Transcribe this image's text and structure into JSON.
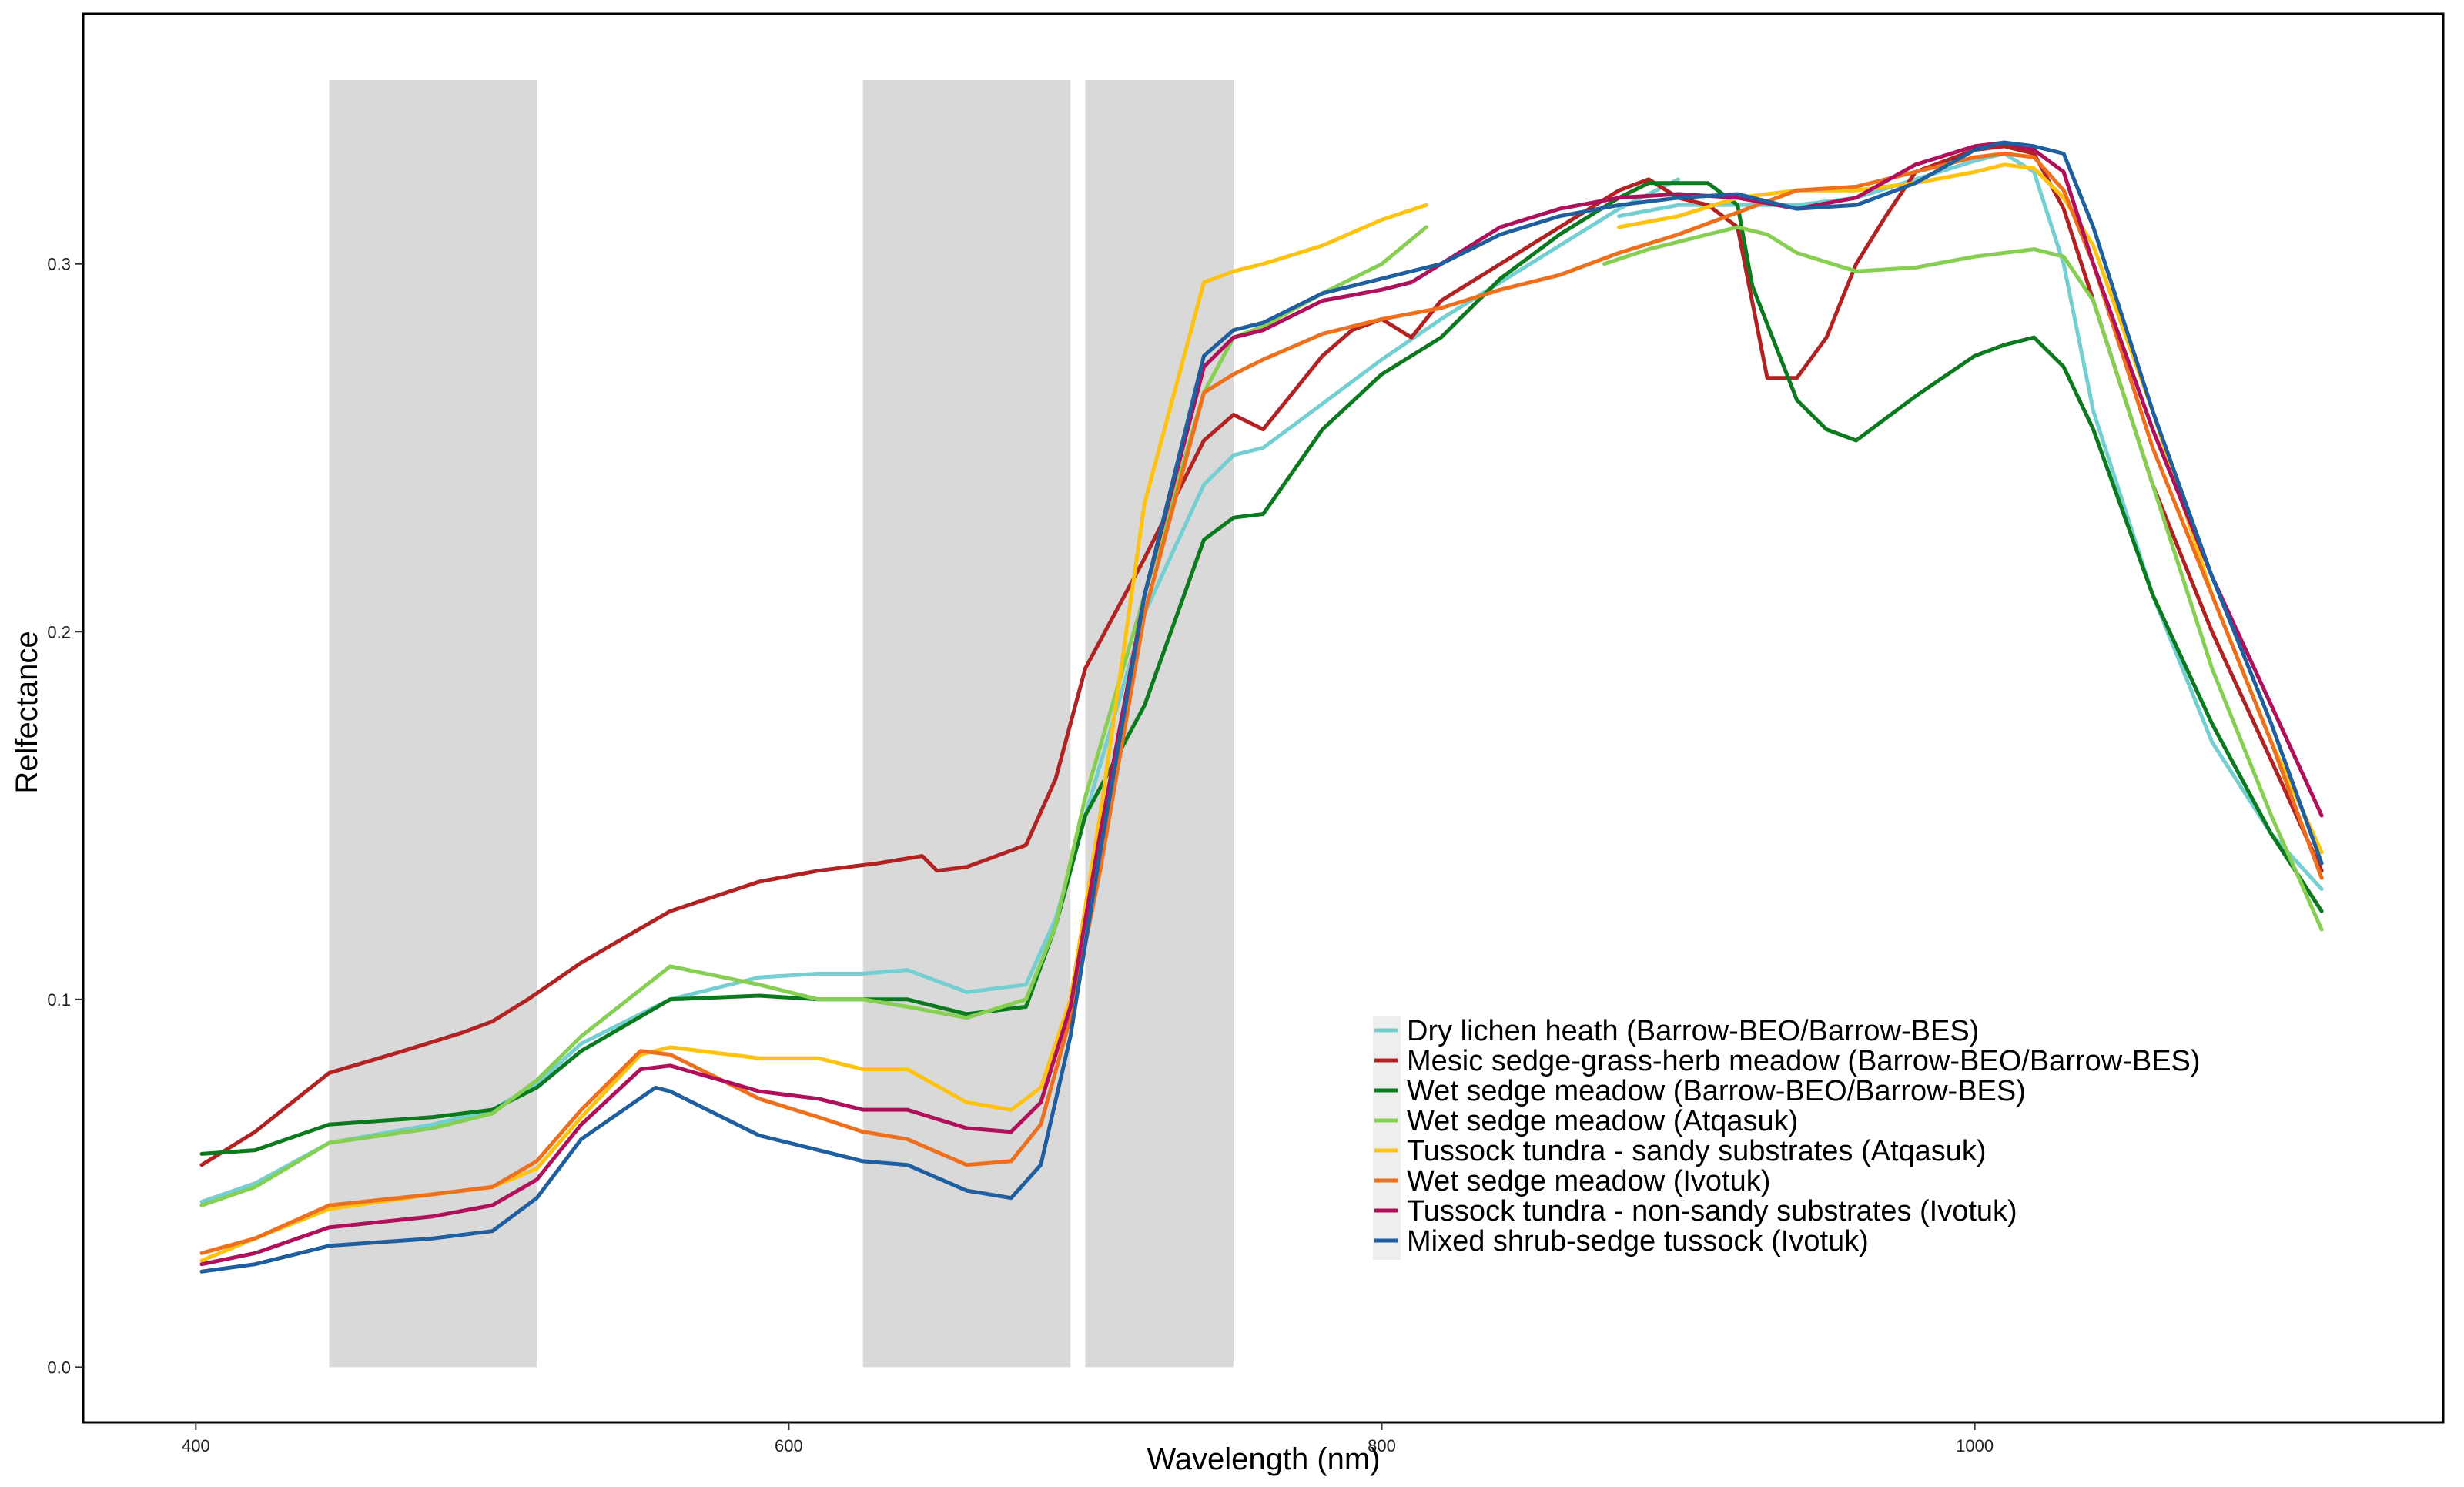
{
  "chart_data": {
    "type": "line",
    "title": "",
    "xlabel": "Wavelength (nm)",
    "ylabel": "Relfectance",
    "xlim": [
      362,
      1158
    ],
    "ylim": [
      -0.015,
      0.368
    ],
    "x_ticks": [
      400,
      600,
      800,
      1000
    ],
    "y_ticks": [
      0.0,
      0.1,
      0.2,
      0.3
    ],
    "x_tick_labels": [
      "400",
      "600",
      "800",
      "1000"
    ],
    "y_tick_labels": [
      "0.0",
      "0.1",
      "0.2",
      "0.3"
    ],
    "grid": false,
    "legend_position": "bottom-right",
    "shaded_bands": [
      {
        "x": [
          445,
          515
        ],
        "y": [
          0,
          0.35
        ],
        "color": "#d9d9d9"
      },
      {
        "x": [
          625,
          695
        ],
        "y": [
          0,
          0.35
        ],
        "color": "#d9d9d9"
      },
      {
        "x": [
          700,
          750
        ],
        "y": [
          0,
          0.35
        ],
        "color": "#d9d9d9"
      }
    ],
    "series": [
      {
        "name": "Dry lichen heath (Barrow-BEO/Barrow-BES)",
        "color": "#74cfd2",
        "segments": [
          {
            "x": [
              402,
              420,
              445,
              480,
              500,
              515,
              530,
              560,
              590,
              610,
              625,
              640,
              660,
              680,
              690,
              700,
              720,
              740,
              750,
              760,
              780,
              800,
              820,
              840,
              860,
              880,
              900
            ],
            "y": [
              0.045,
              0.05,
              0.061,
              0.066,
              0.07,
              0.077,
              0.088,
              0.1,
              0.106,
              0.107,
              0.107,
              0.108,
              0.102,
              0.104,
              0.122,
              0.15,
              0.205,
              0.24,
              0.248,
              0.25,
              0.262,
              0.274,
              0.285,
              0.295,
              0.305,
              0.315,
              0.323
            ]
          },
          {
            "x": [
              880,
              900,
              920,
              940,
              960,
              980,
              1000,
              1010,
              1020,
              1030,
              1040,
              1060,
              1080,
              1100,
              1117
            ],
            "y": [
              0.313,
              0.316,
              0.316,
              0.316,
              0.318,
              0.323,
              0.328,
              0.33,
              0.325,
              0.3,
              0.26,
              0.21,
              0.17,
              0.145,
              0.13
            ]
          }
        ]
      },
      {
        "name": "Mesic sedge-grass-herb meadow (Barrow-BEO/Barrow-BES)",
        "color": "#b22222",
        "segments": [
          {
            "x": [
              402,
              420,
              445,
              470,
              490,
              500,
              512,
              530,
              560,
              590,
              610,
              630,
              645,
              650,
              660,
              680,
              690,
              700,
              720,
              740,
              750,
              760,
              770,
              780,
              790,
              800,
              810,
              820,
              840,
              860,
              880,
              890,
              900,
              910,
              920,
              930,
              940,
              950,
              960,
              970,
              980,
              1000,
              1010,
              1020,
              1030,
              1040,
              1060,
              1080,
              1100,
              1117
            ],
            "y": [
              0.055,
              0.064,
              0.08,
              0.086,
              0.091,
              0.094,
              0.1,
              0.11,
              0.124,
              0.132,
              0.135,
              0.137,
              0.139,
              0.135,
              0.136,
              0.142,
              0.16,
              0.19,
              0.22,
              0.252,
              0.259,
              0.255,
              0.265,
              0.275,
              0.282,
              0.285,
              0.28,
              0.29,
              0.3,
              0.31,
              0.32,
              0.323,
              0.318,
              0.316,
              0.31,
              0.269,
              0.269,
              0.28,
              0.3,
              0.313,
              0.325,
              0.331,
              0.332,
              0.33,
              0.315,
              0.29,
              0.24,
              0.2,
              0.165,
              0.135
            ]
          }
        ]
      },
      {
        "name": "Wet sedge meadow (Barrow-BEO/Barrow-BES)",
        "color": "#0b7a1f",
        "segments": [
          {
            "x": [
              402,
              420,
              445,
              480,
              500,
              515,
              530,
              560,
              590,
              610,
              625,
              640,
              660,
              680,
              690,
              700,
              720,
              740,
              750,
              760,
              780,
              800,
              820,
              840,
              860,
              880,
              890,
              900,
              910,
              920,
              925,
              940,
              950,
              960,
              970,
              980,
              1000,
              1010,
              1020,
              1030,
              1040,
              1060,
              1080,
              1100,
              1117
            ],
            "y": [
              0.058,
              0.059,
              0.066,
              0.068,
              0.07,
              0.076,
              0.086,
              0.1,
              0.101,
              0.1,
              0.1,
              0.1,
              0.096,
              0.098,
              0.12,
              0.15,
              0.18,
              0.225,
              0.231,
              0.232,
              0.255,
              0.27,
              0.28,
              0.296,
              0.308,
              0.318,
              0.322,
              0.322,
              0.322,
              0.316,
              0.294,
              0.263,
              0.255,
              0.252,
              0.258,
              0.264,
              0.275,
              0.278,
              0.28,
              0.272,
              0.255,
              0.21,
              0.175,
              0.145,
              0.124
            ]
          }
        ]
      },
      {
        "name": "Wet sedge meadow (Atqasuk)",
        "color": "#86cf52",
        "segments": [
          {
            "x": [
              402,
              420,
              445,
              480,
              500,
              515,
              530,
              560,
              590,
              610,
              625,
              640,
              660,
              680,
              690,
              700,
              720,
              740,
              750,
              760,
              780,
              800,
              815
            ],
            "y": [
              0.044,
              0.049,
              0.061,
              0.065,
              0.069,
              0.078,
              0.09,
              0.109,
              0.104,
              0.1,
              0.1,
              0.098,
              0.095,
              0.1,
              0.12,
              0.155,
              0.21,
              0.265,
              0.28,
              0.283,
              0.292,
              0.3,
              0.31
            ]
          },
          {
            "x": [
              875,
              890,
              900,
              910,
              920,
              930,
              940,
              960,
              980,
              1000,
              1020,
              1030,
              1040,
              1060,
              1080,
              1100,
              1117
            ],
            "y": [
              0.3,
              0.304,
              0.306,
              0.308,
              0.31,
              0.308,
              0.303,
              0.298,
              0.299,
              0.302,
              0.304,
              0.302,
              0.29,
              0.24,
              0.19,
              0.15,
              0.119
            ]
          }
        ]
      },
      {
        "name": "Tussock tundra - sandy substrates (Atqasuk)",
        "color": "#ffc20e",
        "segments": [
          {
            "x": [
              402,
              420,
              445,
              480,
              500,
              515,
              530,
              550,
              560,
              590,
              610,
              625,
              640,
              660,
              675,
              685,
              695,
              705,
              720,
              740,
              750,
              760,
              780,
              800,
              815
            ],
            "y": [
              0.029,
              0.035,
              0.043,
              0.047,
              0.049,
              0.054,
              0.068,
              0.085,
              0.087,
              0.084,
              0.084,
              0.081,
              0.081,
              0.072,
              0.07,
              0.076,
              0.1,
              0.15,
              0.235,
              0.295,
              0.298,
              0.3,
              0.305,
              0.312,
              0.316
            ]
          },
          {
            "x": [
              880,
              900,
              920,
              940,
              960,
              980,
              1000,
              1010,
              1020,
              1030,
              1040,
              1060,
              1080,
              1100,
              1117
            ],
            "y": [
              0.31,
              0.313,
              0.318,
              0.32,
              0.32,
              0.322,
              0.325,
              0.327,
              0.326,
              0.318,
              0.305,
              0.26,
              0.21,
              0.17,
              0.14
            ]
          }
        ]
      },
      {
        "name": "Wet sedge meadow (Ivotuk)",
        "color": "#ee6f1c",
        "segments": [
          {
            "x": [
              402,
              420,
              445,
              480,
              500,
              515,
              530,
              550,
              560,
              590,
              610,
              625,
              640,
              660,
              675,
              685,
              695,
              705,
              720,
              740,
              750,
              760,
              780,
              800,
              820,
              840,
              860,
              880,
              900,
              920,
              940,
              960,
              980,
              1000,
              1010,
              1020,
              1030,
              1040,
              1060,
              1080,
              1100,
              1117
            ],
            "y": [
              0.031,
              0.035,
              0.044,
              0.047,
              0.049,
              0.056,
              0.07,
              0.086,
              0.085,
              0.073,
              0.068,
              0.064,
              0.062,
              0.055,
              0.056,
              0.066,
              0.095,
              0.135,
              0.205,
              0.265,
              0.27,
              0.274,
              0.281,
              0.285,
              0.288,
              0.293,
              0.297,
              0.303,
              0.308,
              0.314,
              0.32,
              0.321,
              0.325,
              0.329,
              0.33,
              0.329,
              0.32,
              0.3,
              0.25,
              0.21,
              0.17,
              0.133
            ]
          }
        ]
      },
      {
        "name": "Tussock tundra - non-sandy substrates (Ivotuk)",
        "color": "#b0105a",
        "segments": [
          {
            "x": [
              402,
              420,
              445,
              480,
              500,
              515,
              530,
              550,
              560,
              590,
              610,
              625,
              640,
              660,
              675,
              685,
              695,
              705,
              720,
              740,
              750,
              760,
              780,
              800,
              810,
              820,
              840,
              860,
              880,
              900,
              920,
              940,
              960,
              980,
              1000,
              1010,
              1020,
              1030,
              1040,
              1060,
              1080,
              1100,
              1117
            ],
            "y": [
              0.028,
              0.031,
              0.038,
              0.041,
              0.044,
              0.051,
              0.066,
              0.081,
              0.082,
              0.075,
              0.073,
              0.07,
              0.07,
              0.065,
              0.064,
              0.072,
              0.098,
              0.145,
              0.21,
              0.272,
              0.28,
              0.282,
              0.29,
              0.293,
              0.295,
              0.3,
              0.31,
              0.315,
              0.318,
              0.319,
              0.318,
              0.315,
              0.318,
              0.327,
              0.332,
              0.333,
              0.331,
              0.325,
              0.3,
              0.255,
              0.215,
              0.18,
              0.15
            ]
          }
        ]
      },
      {
        "name": "Mixed shrub-sedge tussock (Ivotuk)",
        "color": "#1f5fa0",
        "segments": [
          {
            "x": [
              402,
              420,
              445,
              480,
              500,
              515,
              530,
              555,
              560,
              590,
              610,
              625,
              640,
              660,
              675,
              685,
              695,
              705,
              720,
              740,
              750,
              760,
              780,
              800,
              820,
              840,
              860,
              880,
              900,
              920,
              940,
              960,
              980,
              1000,
              1010,
              1020,
              1030,
              1040,
              1060,
              1080,
              1100,
              1117
            ],
            "y": [
              0.026,
              0.028,
              0.033,
              0.035,
              0.037,
              0.046,
              0.062,
              0.076,
              0.075,
              0.063,
              0.059,
              0.056,
              0.055,
              0.048,
              0.046,
              0.055,
              0.09,
              0.14,
              0.21,
              0.275,
              0.282,
              0.284,
              0.292,
              0.296,
              0.3,
              0.308,
              0.313,
              0.316,
              0.318,
              0.319,
              0.315,
              0.316,
              0.322,
              0.331,
              0.333,
              0.332,
              0.33,
              0.31,
              0.26,
              0.215,
              0.175,
              0.137
            ]
          }
        ]
      }
    ]
  }
}
